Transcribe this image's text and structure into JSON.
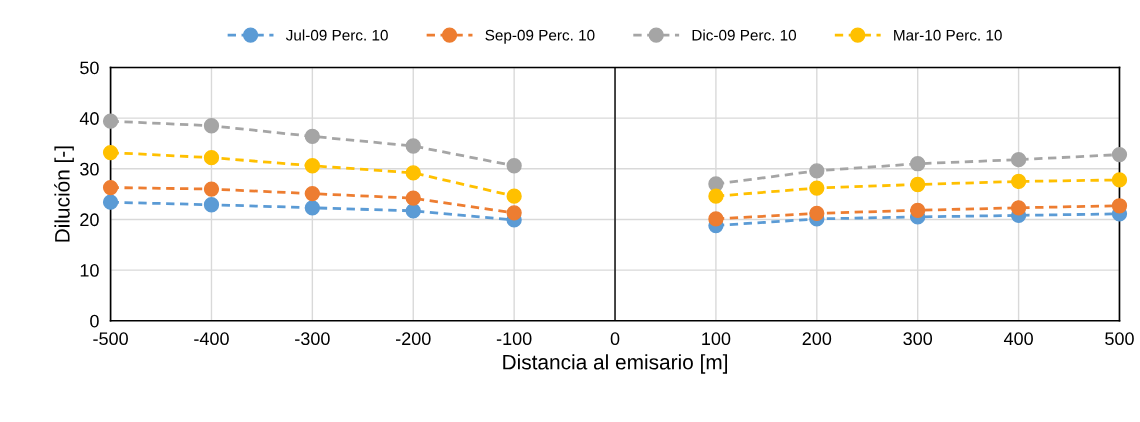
{
  "chart_data": {
    "type": "line",
    "xlabel": "Distancia al emisario [m]",
    "ylabel": "Dilución [-]",
    "x": [
      -500,
      -400,
      -300,
      -200,
      -100,
      0,
      100,
      200,
      300,
      400,
      500
    ],
    "series": [
      {
        "name": "Jul-09 Perc. 10",
        "color": "#5b9bd5",
        "values": [
          23.4,
          22.9,
          22.3,
          21.7,
          19.9,
          null,
          18.8,
          20.1,
          20.5,
          20.8,
          21.1
        ]
      },
      {
        "name": "Sep-09 Perc. 10",
        "color": "#ed7d31",
        "values": [
          26.3,
          26.0,
          25.1,
          24.2,
          21.3,
          null,
          20.1,
          21.2,
          21.8,
          22.3,
          22.7
        ]
      },
      {
        "name": "Dic-09 Perc. 10",
        "color": "#a5a5a5",
        "values": [
          39.4,
          38.5,
          36.4,
          34.5,
          30.6,
          null,
          27.0,
          29.6,
          31.0,
          31.8,
          32.8
        ]
      },
      {
        "name": "Mar-10 Perc. 10",
        "color": "#ffc000",
        "values": [
          33.2,
          32.2,
          30.6,
          29.2,
          24.6,
          null,
          24.6,
          26.2,
          26.9,
          27.5,
          27.8
        ]
      }
    ],
    "xlim": [
      -500,
      500
    ],
    "xticks": [
      -500,
      -400,
      -300,
      -200,
      -100,
      0,
      100,
      200,
      300,
      400,
      500
    ],
    "ylim": [
      0,
      50
    ],
    "yticks": [
      0,
      10,
      20,
      30,
      40,
      50
    ],
    "ref_lines": [
      {
        "axis": "x",
        "value": 0,
        "label": null,
        "color": "#000000"
      }
    ],
    "grid": true,
    "legend": "top",
    "marker": "circle",
    "line_style": "dashed"
  }
}
